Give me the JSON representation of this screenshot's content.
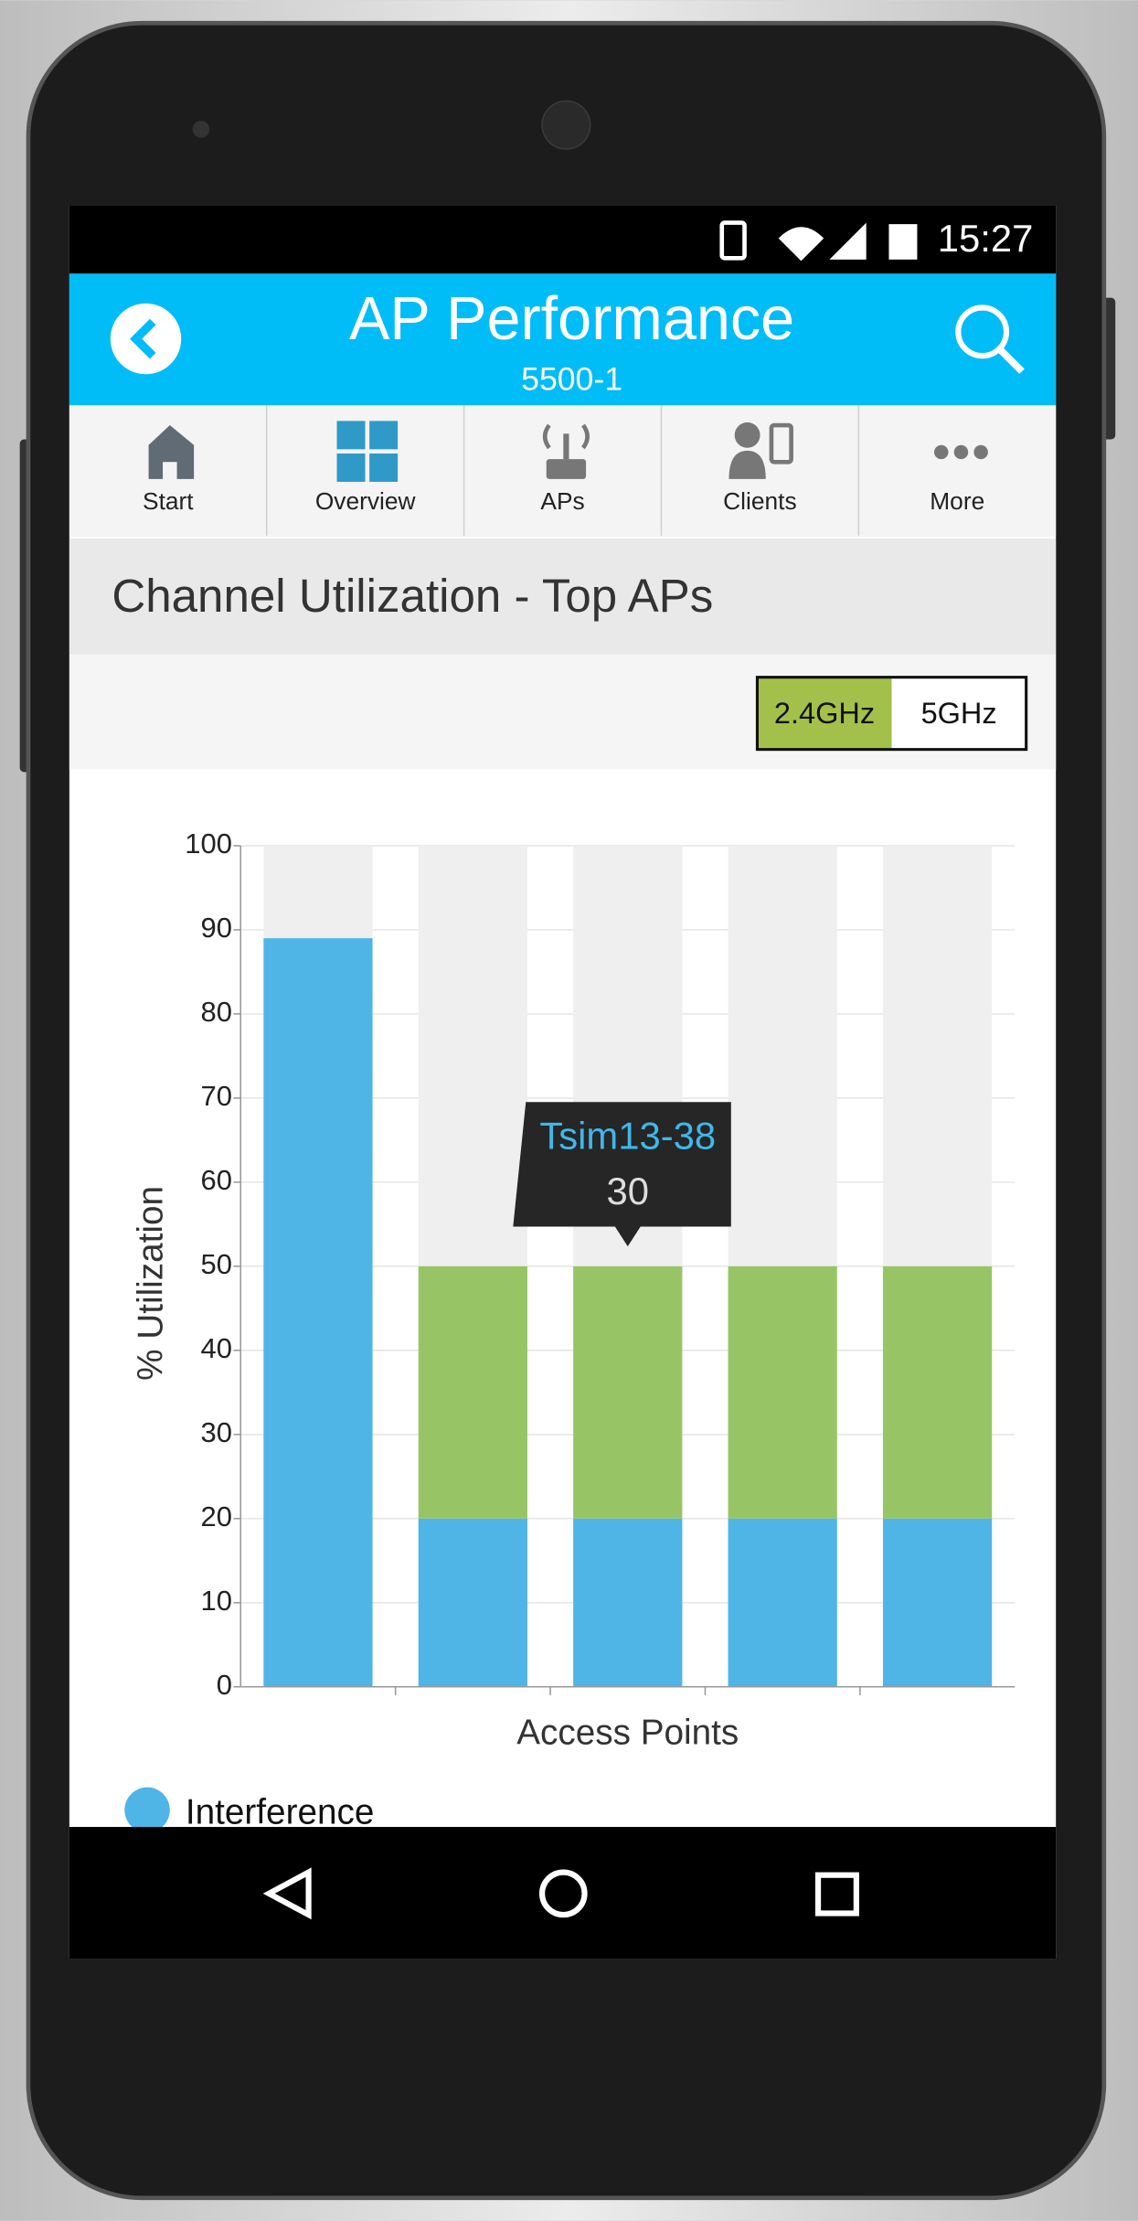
{
  "status_bar": {
    "time": "15:27"
  },
  "header": {
    "title": "AP Performance",
    "subtitle": "5500-1"
  },
  "tabs": [
    "Start",
    "Overview",
    "APs",
    "Clients",
    "More"
  ],
  "section_title": "Channel Utilization - Top APs",
  "band_toggle": {
    "options": [
      "2.4GHz",
      "5GHz"
    ],
    "selected": 0
  },
  "chart_data": {
    "type": "stacked-bar",
    "categories": [
      null,
      null,
      null,
      null,
      null
    ],
    "series": [
      {
        "name": "Interference",
        "color": "#4fb5e7",
        "values": [
          89,
          20,
          20,
          20,
          20
        ]
      },
      {
        "color": "#97c566",
        "values": [
          0,
          30,
          30,
          30,
          30
        ]
      }
    ],
    "track_color": "#efefef",
    "x_label": "Access Points",
    "y_label": "% Utilization",
    "ylim": [
      0,
      100
    ],
    "yticks": [
      0,
      10,
      20,
      30,
      40,
      50,
      60,
      70,
      80,
      90,
      100
    ],
    "grid": true,
    "tooltip": {
      "label": "Tsim13-38",
      "series": 1,
      "index": 2
    }
  }
}
